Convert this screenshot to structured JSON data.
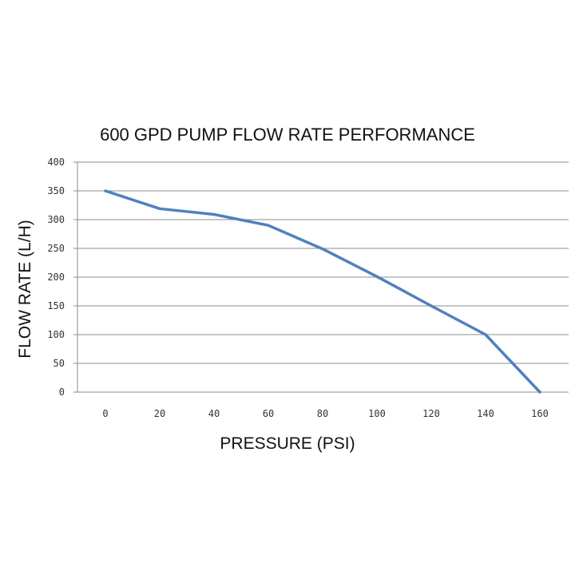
{
  "chart_data": {
    "type": "line",
    "title": "600 GPD PUMP FLOW RATE PERFORMANCE",
    "xlabel": "PRESSURE (PSI)",
    "ylabel": "FLOW RATE (L/H)",
    "categories": [
      "0",
      "20",
      "40",
      "60",
      "80",
      "100",
      "120",
      "140",
      "160"
    ],
    "series": [
      {
        "values": [
          350,
          319,
          309,
          290,
          249,
          201,
          150,
          100,
          0
        ]
      }
    ],
    "ylim": [
      0,
      400
    ],
    "y_ticks": [
      "0",
      "50",
      "100",
      "150",
      "200",
      "250",
      "300",
      "350",
      "400"
    ],
    "grid": "horizontal",
    "line_color": "#4f81bd"
  }
}
